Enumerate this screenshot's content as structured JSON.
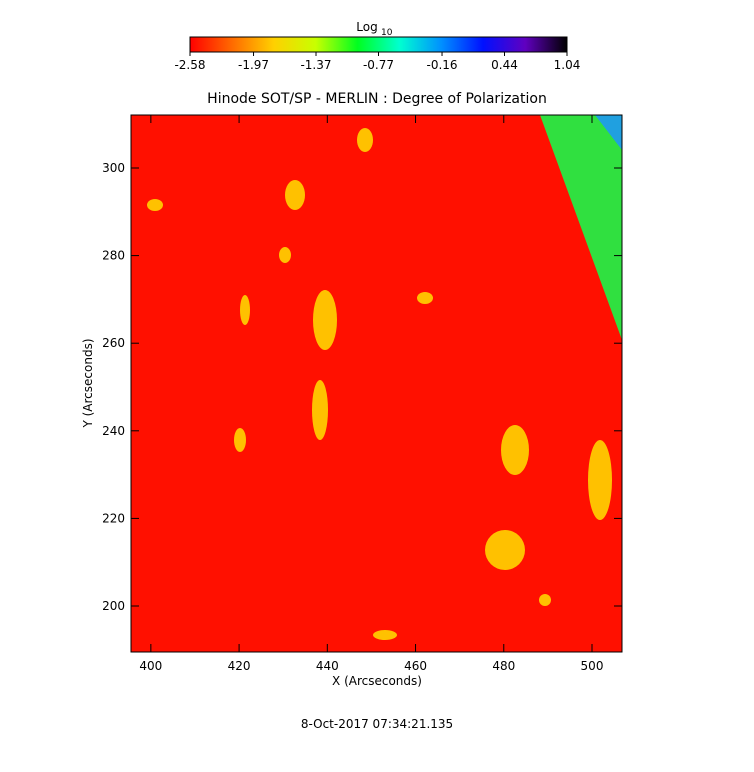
{
  "chart_data": {
    "type": "image",
    "title": "Hinode SOT/SP - MERLIN : Degree of Polarization",
    "xlabel": "X (Arcseconds)",
    "ylabel": "Y (Arcseconds)",
    "xlim": [
      395.5,
      506.8
    ],
    "ylim": [
      189.5,
      312.1
    ],
    "xticks": [
      400,
      420,
      440,
      460,
      480,
      500
    ],
    "yticks": [
      200,
      220,
      240,
      260,
      280,
      300
    ],
    "colorbar": {
      "label": "Log",
      "label_subscript": "10",
      "lim": [
        -2.58,
        1.04
      ],
      "ticks": [
        -2.58,
        -1.97,
        -1.37,
        -0.77,
        -0.16,
        0.44,
        1.04
      ],
      "colors": [
        "#ff0000",
        "#ff6a00",
        "#ffd000",
        "#c8ff00",
        "#00ff20",
        "#00ffd0",
        "#0090ff",
        "#0010ff",
        "#6000c0",
        "#000000"
      ]
    },
    "timestamp": "8-Oct-2017 07:34:21.135"
  }
}
